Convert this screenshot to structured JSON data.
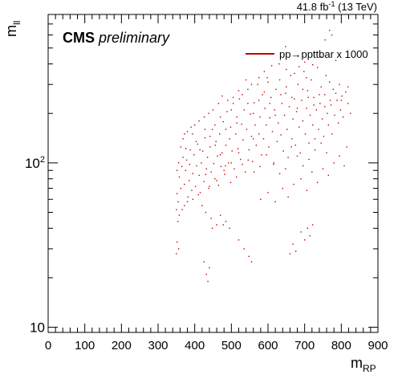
{
  "chart_data": {
    "type": "scatter",
    "title": "",
    "top_right_label": {
      "lumi": "41.8 fb",
      "exponent": "-1",
      "energy": " (13 TeV)"
    },
    "experiment_label": {
      "bold": "CMS",
      "italic": "preliminary"
    },
    "xlabel": {
      "main": "m",
      "sub": "RP"
    },
    "ylabel": {
      "main": "m",
      "sub": "ll"
    },
    "xlim": [
      0,
      900
    ],
    "ylim": [
      9.3,
      800
    ],
    "y_scale": "log",
    "x_ticks": [
      "0",
      "100",
      "200",
      "300",
      "400",
      "500",
      "600",
      "700",
      "800",
      "900"
    ],
    "x_tick_values": [
      0,
      100,
      200,
      300,
      400,
      500,
      600,
      700,
      800,
      900
    ],
    "y_ticks": [
      {
        "value": 10,
        "base": "10",
        "exp": ""
      },
      {
        "value": 100,
        "base": "10",
        "exp": "2"
      }
    ],
    "grid": false,
    "legend_position": "top-right",
    "series": [
      {
        "name": "pp→ppttbar x 1000",
        "color": "#c00000",
        "points": [
          [
            352,
            65
          ],
          [
            355,
            58
          ],
          [
            358,
            82
          ],
          [
            362,
            70
          ],
          [
            365,
            95
          ],
          [
            368,
            140
          ],
          [
            372,
            74
          ],
          [
            375,
            90
          ],
          [
            378,
            104
          ],
          [
            382,
            62
          ],
          [
            385,
            78
          ],
          [
            388,
            120
          ],
          [
            392,
            68
          ],
          [
            395,
            86
          ],
          [
            398,
            112
          ],
          [
            402,
            72
          ],
          [
            405,
            96
          ],
          [
            408,
            130
          ],
          [
            412,
            84
          ],
          [
            415,
            66
          ],
          [
            418,
            100
          ],
          [
            422,
            118
          ],
          [
            425,
            77
          ],
          [
            428,
            142
          ],
          [
            432,
            92
          ],
          [
            435,
            108
          ],
          [
            438,
            70
          ],
          [
            442,
            125
          ],
          [
            445,
            88
          ],
          [
            448,
            160
          ],
          [
            452,
            99
          ],
          [
            455,
            80
          ],
          [
            458,
            135
          ],
          [
            462,
            110
          ],
          [
            465,
            73
          ],
          [
            468,
            150
          ],
          [
            472,
            95
          ],
          [
            475,
            115
          ],
          [
            478,
            178
          ],
          [
            482,
            85
          ],
          [
            485,
            128
          ],
          [
            488,
            205
          ],
          [
            492,
            100
          ],
          [
            495,
            140
          ],
          [
            498,
            165
          ],
          [
            502,
            118
          ],
          [
            505,
            230
          ],
          [
            508,
            92
          ],
          [
            512,
            150
          ],
          [
            515,
            190
          ],
          [
            518,
            122
          ],
          [
            522,
            245
          ],
          [
            525,
            105
          ],
          [
            528,
            172
          ],
          [
            532,
            138
          ],
          [
            535,
            210
          ],
          [
            538,
            88
          ],
          [
            542,
            160
          ],
          [
            545,
            280
          ],
          [
            548,
            120
          ],
          [
            552,
            198
          ],
          [
            555,
            145
          ],
          [
            558,
            102
          ],
          [
            562,
            232
          ],
          [
            565,
            170
          ],
          [
            568,
            128
          ],
          [
            572,
            300
          ],
          [
            575,
            150
          ],
          [
            578,
            190
          ],
          [
            582,
            112
          ],
          [
            585,
            260
          ],
          [
            588,
            140
          ],
          [
            592,
            215
          ],
          [
            595,
            170
          ],
          [
            598,
            330
          ],
          [
            602,
            125
          ],
          [
            605,
            188
          ],
          [
            608,
            250
          ],
          [
            612,
            155
          ],
          [
            615,
            98
          ],
          [
            618,
            210
          ],
          [
            622,
            280
          ],
          [
            625,
            135
          ],
          [
            628,
            175
          ],
          [
            632,
            320
          ],
          [
            635,
            148
          ],
          [
            638,
            230
          ],
          [
            642,
            118
          ],
          [
            645,
            195
          ],
          [
            648,
            265
          ],
          [
            652,
            160
          ],
          [
            655,
            108
          ],
          [
            658,
            220
          ],
          [
            662,
            340
          ],
          [
            665,
            140
          ],
          [
            668,
            185
          ],
          [
            672,
            245
          ],
          [
            675,
            128
          ],
          [
            678,
            205
          ],
          [
            682,
            300
          ],
          [
            685,
            165
          ],
          [
            688,
            115
          ],
          [
            692,
            240
          ],
          [
            695,
            180
          ],
          [
            698,
            360
          ],
          [
            702,
            150
          ],
          [
            705,
            215
          ],
          [
            708,
            275
          ],
          [
            712,
            132
          ],
          [
            715,
            195
          ],
          [
            718,
            320
          ],
          [
            722,
            170
          ],
          [
            725,
            250
          ],
          [
            728,
            140
          ],
          [
            732,
            210
          ],
          [
            735,
            380
          ],
          [
            738,
            160
          ],
          [
            742,
            230
          ],
          [
            745,
            290
          ],
          [
            748,
            185
          ],
          [
            752,
            145
          ],
          [
            755,
            260
          ],
          [
            758,
            340
          ],
          [
            762,
            200
          ],
          [
            765,
            170
          ],
          [
            768,
            310
          ],
          [
            772,
            225
          ],
          [
            775,
            150
          ],
          [
            778,
            280
          ],
          [
            782,
            195
          ],
          [
            785,
            420
          ],
          [
            788,
            240
          ],
          [
            792,
            175
          ],
          [
            795,
            300
          ],
          [
            798,
            210
          ],
          [
            802,
            255
          ],
          [
            805,
            190
          ],
          [
            812,
            270
          ],
          [
            818,
            230
          ],
          [
            825,
            200
          ],
          [
            756,
            560
          ],
          [
            768,
            640
          ],
          [
            774,
            600
          ],
          [
            648,
            510
          ],
          [
            590,
            360
          ],
          [
            610,
            390
          ],
          [
            540,
            320
          ],
          [
            560,
            140
          ],
          [
            520,
            115
          ],
          [
            500,
            100
          ],
          [
            480,
            90
          ],
          [
            460,
            78
          ],
          [
            440,
            72
          ],
          [
            430,
            85
          ],
          [
            410,
            64
          ],
          [
            395,
            60
          ],
          [
            380,
            58
          ],
          [
            372,
            55
          ],
          [
            366,
            52
          ],
          [
            358,
            48
          ],
          [
            354,
            44
          ],
          [
            350,
            52
          ],
          [
            420,
            55
          ],
          [
            430,
            50
          ],
          [
            445,
            46
          ],
          [
            460,
            42
          ],
          [
            470,
            48
          ],
          [
            485,
            44
          ],
          [
            495,
            40
          ],
          [
            448,
            40
          ],
          [
            478,
            42
          ],
          [
            352,
            33
          ],
          [
            356,
            30
          ],
          [
            350,
            28
          ],
          [
            425,
            25
          ],
          [
            432,
            21
          ],
          [
            436,
            19
          ],
          [
            440,
            23
          ],
          [
            520,
            34
          ],
          [
            535,
            30
          ],
          [
            548,
            27
          ],
          [
            555,
            25
          ],
          [
            660,
            28
          ],
          [
            668,
            32
          ],
          [
            676,
            29
          ],
          [
            690,
            38
          ],
          [
            700,
            34
          ],
          [
            708,
            40
          ],
          [
            714,
            36
          ],
          [
            722,
            42
          ],
          [
            580,
            60
          ],
          [
            600,
            66
          ],
          [
            620,
            58
          ],
          [
            640,
            70
          ],
          [
            655,
            62
          ],
          [
            670,
            74
          ],
          [
            690,
            80
          ],
          [
            706,
            68
          ],
          [
            720,
            88
          ],
          [
            735,
            76
          ],
          [
            750,
            92
          ],
          [
            765,
            84
          ],
          [
            780,
            100
          ],
          [
            795,
            110
          ],
          [
            808,
            96
          ],
          [
            815,
            125
          ],
          [
            760,
            115
          ],
          [
            745,
            132
          ],
          [
            728,
            120
          ],
          [
            712,
            105
          ],
          [
            696,
            96
          ],
          [
            680,
            110
          ],
          [
            664,
            125
          ],
          [
            648,
            92
          ],
          [
            632,
            86
          ],
          [
            616,
            100
          ],
          [
            596,
            112
          ],
          [
            578,
            95
          ],
          [
            562,
            88
          ],
          [
            546,
            104
          ],
          [
            530,
            98
          ],
          [
            514,
            82
          ],
          [
            498,
            76
          ],
          [
            484,
            96
          ],
          [
            470,
            112
          ],
          [
            456,
            128
          ],
          [
            442,
            145
          ],
          [
            428,
            160
          ],
          [
            414,
            120
          ],
          [
            404,
            135
          ],
          [
            394,
            150
          ],
          [
            386,
            98
          ],
          [
            376,
            122
          ],
          [
            368,
            108
          ],
          [
            362,
            125
          ],
          [
            356,
            100
          ],
          [
            352,
            90
          ],
          [
            455,
            170
          ],
          [
            470,
            190
          ],
          [
            485,
            160
          ],
          [
            500,
            210
          ],
          [
            515,
            175
          ],
          [
            530,
            260
          ],
          [
            545,
            230
          ],
          [
            560,
            200
          ],
          [
            575,
            240
          ],
          [
            590,
            270
          ],
          [
            605,
            230
          ],
          [
            620,
            195
          ],
          [
            635,
            260
          ],
          [
            650,
            290
          ],
          [
            665,
            250
          ],
          [
            680,
            215
          ],
          [
            695,
            280
          ],
          [
            710,
            250
          ],
          [
            725,
            225
          ],
          [
            740,
            260
          ],
          [
            755,
            220
          ],
          [
            770,
            240
          ],
          [
            785,
            265
          ],
          [
            800,
            240
          ],
          [
            818,
            290
          ],
          [
            630,
            400
          ],
          [
            650,
            370
          ],
          [
            672,
            350
          ],
          [
            700,
            410
          ],
          [
            722,
            395
          ],
          [
            745,
            440
          ],
          [
            705,
            330
          ],
          [
            685,
            385
          ],
          [
            600,
            310
          ],
          [
            575,
            330
          ],
          [
            555,
            300
          ],
          [
            520,
            275
          ],
          [
            505,
            250
          ],
          [
            490,
            240
          ],
          [
            475,
            255
          ],
          [
            465,
            230
          ],
          [
            450,
            210
          ],
          [
            438,
            200
          ],
          [
            426,
            190
          ],
          [
            412,
            180
          ],
          [
            400,
            170
          ],
          [
            390,
            165
          ],
          [
            380,
            155
          ],
          [
            372,
            150
          ]
        ]
      }
    ]
  }
}
